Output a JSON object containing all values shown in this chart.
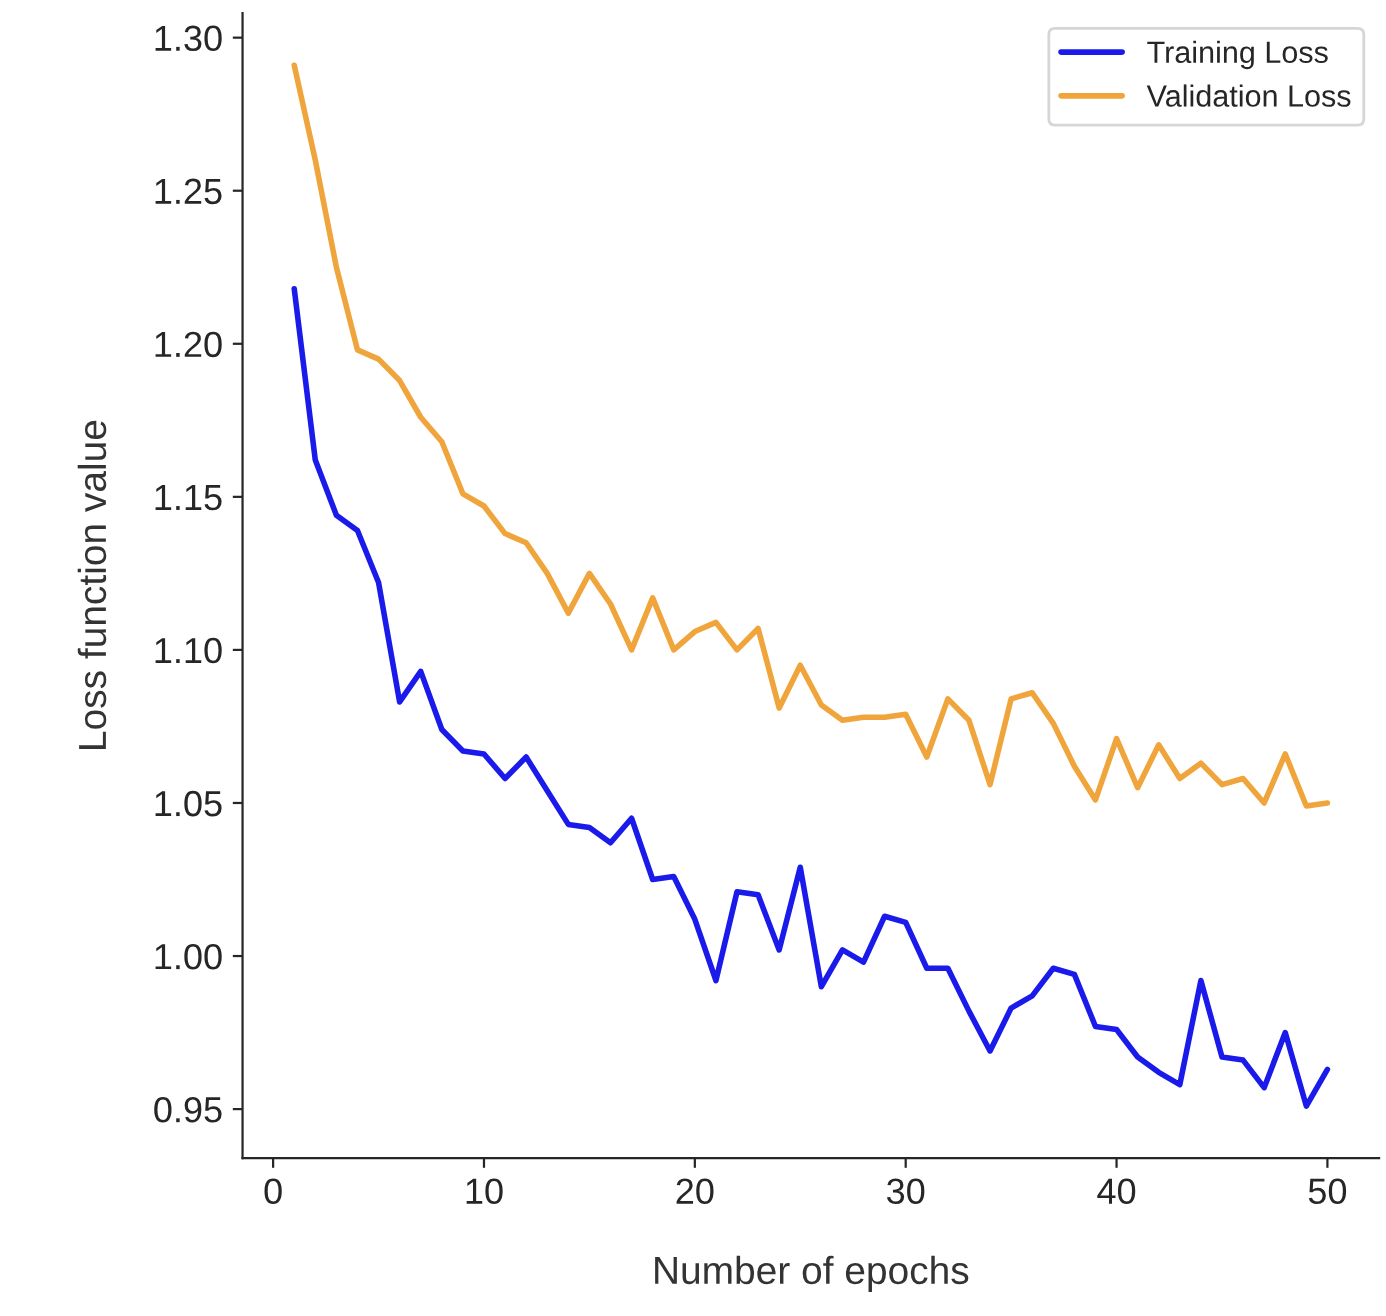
{
  "chart_data": {
    "type": "line",
    "xlabel": "Number of epochs",
    "ylabel": "Loss function value",
    "x": [
      1,
      2,
      3,
      4,
      5,
      6,
      7,
      8,
      9,
      10,
      11,
      12,
      13,
      14,
      15,
      16,
      17,
      18,
      19,
      20,
      21,
      22,
      23,
      24,
      25,
      26,
      27,
      28,
      29,
      30,
      31,
      32,
      33,
      34,
      35,
      36,
      37,
      38,
      39,
      40,
      41,
      42,
      43,
      44,
      45,
      46,
      47,
      48,
      49,
      50
    ],
    "series": [
      {
        "name": "Training Loss",
        "color": "#1a1aeb",
        "values": [
          1.218,
          1.162,
          1.144,
          1.139,
          1.122,
          1.083,
          1.093,
          1.074,
          1.067,
          1.066,
          1.058,
          1.065,
          1.054,
          1.043,
          1.042,
          1.037,
          1.045,
          1.025,
          1.026,
          1.012,
          0.992,
          1.021,
          1.02,
          1.002,
          1.029,
          0.99,
          1.002,
          0.998,
          1.013,
          1.011,
          0.996,
          0.996,
          0.982,
          0.969,
          0.983,
          0.987,
          0.996,
          0.994,
          0.977,
          0.976,
          0.967,
          0.962,
          0.958,
          0.992,
          0.967,
          0.966,
          0.957,
          0.975,
          0.951,
          0.963
        ]
      },
      {
        "name": "Validation Loss",
        "color": "#f0a53c",
        "values": [
          1.291,
          1.26,
          1.225,
          1.198,
          1.195,
          1.188,
          1.176,
          1.168,
          1.151,
          1.147,
          1.138,
          1.135,
          1.125,
          1.112,
          1.125,
          1.115,
          1.1,
          1.117,
          1.1,
          1.106,
          1.109,
          1.1,
          1.107,
          1.081,
          1.095,
          1.082,
          1.077,
          1.078,
          1.078,
          1.079,
          1.065,
          1.084,
          1.077,
          1.056,
          1.084,
          1.086,
          1.076,
          1.062,
          1.051,
          1.071,
          1.055,
          1.069,
          1.058,
          1.063,
          1.056,
          1.058,
          1.05,
          1.066,
          1.049,
          1.05
        ]
      }
    ],
    "xlim": [
      -1.45,
      52.45
    ],
    "xticks": [
      0,
      10,
      20,
      30,
      40,
      50
    ],
    "ylim": [
      0.934,
      1.308
    ],
    "yticks": [
      {
        "value": 0.95,
        "label": "0.95"
      },
      {
        "value": 1.0,
        "label": "1.00"
      },
      {
        "value": 1.05,
        "label": "1.05"
      },
      {
        "value": 1.1,
        "label": "1.10"
      },
      {
        "value": 1.15,
        "label": "1.15"
      },
      {
        "value": 1.2,
        "label": "1.20"
      },
      {
        "value": 1.25,
        "label": "1.25"
      },
      {
        "value": 1.3,
        "label": "1.30"
      }
    ],
    "legend": "top right",
    "grid": false,
    "marker": "none",
    "line_style": "solid"
  }
}
